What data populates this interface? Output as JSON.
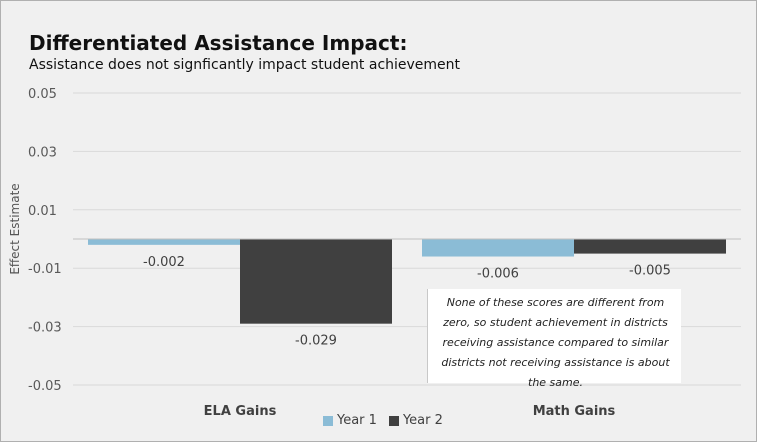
{
  "colors": {
    "year1": "#8bbcd6",
    "year2": "#404040",
    "grid": "#d9d9d9",
    "axis": "#bfbfbf",
    "tick_label": "#595959",
    "value_label": "#404040",
    "category_label": "#404040"
  },
  "chart_data": {
    "type": "bar",
    "title": "Differentiated Assistance Impact:",
    "subtitle": "Assistance does not signficantly impact student achievement",
    "ylabel": "Effect Estimate",
    "xlabel": "",
    "categories": [
      "ELA Gains",
      "Math Gains"
    ],
    "series": [
      {
        "name": "Year 1",
        "values": [
          -0.002,
          -0.006
        ],
        "labels": [
          "-0.002",
          "-0.006"
        ]
      },
      {
        "name": "Year 2",
        "values": [
          -0.029,
          -0.005
        ],
        "labels": [
          "-0.029",
          "-0.005"
        ]
      }
    ],
    "ylim": [
      -0.05,
      0.05
    ],
    "yticks": [
      0.05,
      0.03,
      0.01,
      -0.01,
      -0.03,
      -0.05
    ],
    "ytick_labels": [
      "0.05",
      "0.03",
      "0.01",
      "-0.01",
      "-0.03",
      "-0.05"
    ],
    "grid": true,
    "legend_position": "bottom",
    "annotation": "None of these scores are different from zero, so student achievement in districts receiving assistance compared to similar districts not receiving assistance is about the same."
  }
}
